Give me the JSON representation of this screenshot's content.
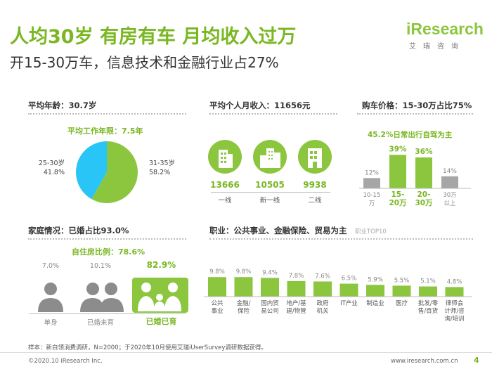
{
  "header": {
    "title": "人均30岁 有房有车 月均收入过万",
    "subtitle": "开15-30万车，信息技术和金融行业占27%",
    "logo_brand": "iResearch",
    "logo_sub": "艾瑞咨询"
  },
  "colors": {
    "green": "#8cc63f",
    "green_dark": "#7ab723",
    "blue": "#29c5f6",
    "gray": "#a6a6a6"
  },
  "age_panel": {
    "heading": "平均年龄：30.7岁",
    "sub": "平均工作年限：7.5年"
  },
  "income_panel": {
    "heading": "平均个人月收入：11656元",
    "cities": [
      {
        "value": "13666",
        "label": "一线",
        "icon": "building-icon"
      },
      {
        "value": "10505",
        "label": "新一线",
        "icon": "buildings-icon"
      },
      {
        "value": "9938",
        "label": "二线",
        "icon": "house-icon"
      }
    ]
  },
  "car_panel": {
    "heading": "购车价格：15-30万占比75%",
    "sub": "45.2%日常出行自驾为主"
  },
  "family_panel": {
    "heading": "家庭情况：已婚占比93.0%",
    "sub": "自住房比例：78.6%",
    "groups": [
      {
        "pct": "7.0%",
        "label": "单身",
        "icon": "single-person-icon"
      },
      {
        "pct": "10.1%",
        "label": "已婚未育",
        "icon": "couple-icon"
      },
      {
        "pct": "82.9%",
        "label": "已婚已育",
        "icon": "family-icon"
      }
    ]
  },
  "job_panel": {
    "heading": "职业：公共事业、金融保险、贸易为主",
    "note": "职业TOP10"
  },
  "footer": {
    "note": "样本：新白领消费调研，N=2000；于2020年10月使用艾瑞iUserSurvey调研数据获得。",
    "copyright": "©2020.10 iResearch Inc.",
    "site": "www.iresearch.com.cn",
    "page": "4"
  },
  "chart_data": [
    {
      "type": "pie",
      "title": "",
      "slices": [
        {
          "label": "31-35岁",
          "value": 58.2,
          "display": "58.2%"
        },
        {
          "label": "25-30岁",
          "value": 41.8,
          "display": "41.8%"
        }
      ],
      "colors": [
        "#8cc63f",
        "#29c5f6"
      ]
    },
    {
      "type": "bar",
      "title": "",
      "categories": [
        "10-15万",
        "15-20万",
        "20-30万",
        "30万以上"
      ],
      "values": [
        12,
        39,
        36,
        14
      ],
      "value_labels": [
        "12%",
        "39%",
        "36%",
        "14%"
      ],
      "ylim": [
        0,
        45
      ],
      "highlight": [
        false,
        true,
        true,
        false
      ]
    },
    {
      "type": "bar",
      "title": "",
      "categories": [
        "公共事业",
        "金融/保险",
        "国内贸易公司",
        "地产/基建/物管",
        "政府机关",
        "IT产业",
        "制造业",
        "医疗",
        "批发/零售/百货",
        "律师会计师/咨询/培训"
      ],
      "values": [
        9.8,
        9.8,
        9.4,
        7.8,
        7.6,
        6.5,
        5.9,
        5.5,
        5.1,
        4.8
      ],
      "value_labels": [
        "9.8%",
        "9.8%",
        "9.4%",
        "7.8%",
        "7.6%",
        "6.5%",
        "5.9%",
        "5.5%",
        "5.1%",
        "4.8%"
      ],
      "ylim": [
        0,
        12
      ]
    }
  ]
}
